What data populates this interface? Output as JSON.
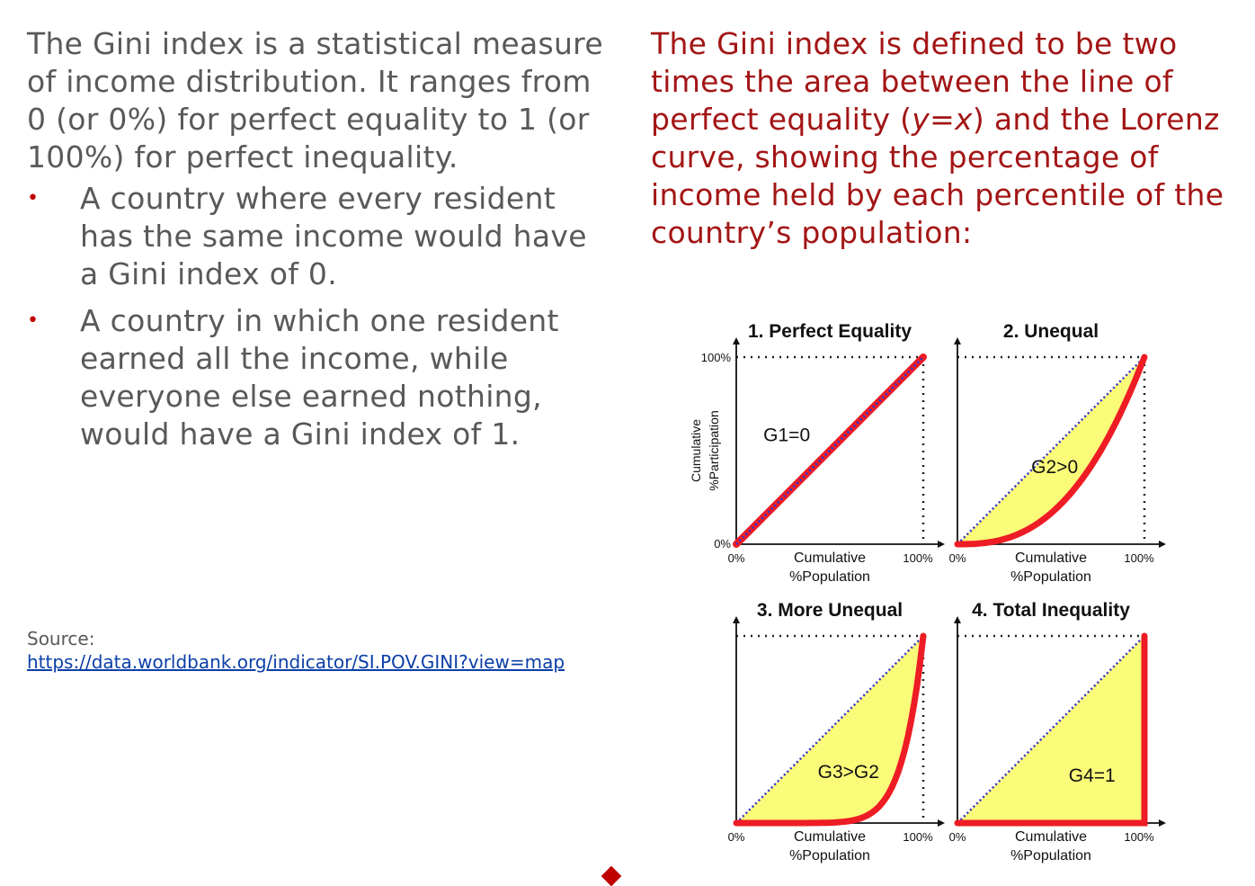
{
  "left": {
    "intro": "The Gini index is a statistical measure of income distribution. It ranges from 0 (or 0%) for perfect equality to 1 (or 100%) for perfect inequality.",
    "bullets": [
      "A country where every resident has the same income would have a Gini index of 0.",
      "A country in which one resident earned all the income, while everyone else earned nothing, would have a Gini index of 1."
    ],
    "bullet_glyph": "•",
    "source_label": "Source:",
    "source_url": "https://data.worldbank.org/indicator/SI.POV.GINI?view=map"
  },
  "right": {
    "text_before": "The Gini index is defined to be two times the area between the line of perfect equality (",
    "var_y": "y",
    "equals": "=",
    "var_x": "x",
    "text_after": ") and the Lorenz curve, showing the percentage of income held by each percentile of the country’s population:"
  },
  "figure": {
    "y_axis_label_line1": "Cumulative",
    "y_axis_label_line2": "%Participation",
    "x_axis_label_line1": "Cumulative",
    "x_axis_label_line2": "%Population",
    "tick_zero": "0%",
    "tick_hundred": "100%",
    "colors": {
      "curve": "#ee1c24",
      "fill": "#fbfb7a",
      "equality": "#3434c8",
      "axis": "#111111"
    },
    "panels": [
      {
        "title": "1. Perfect Equality",
        "label": "G1=0",
        "curve": "equality"
      },
      {
        "title": "2. Unequal",
        "label": "G2>0",
        "curve": "unequal"
      },
      {
        "title": "3. More Unequal",
        "label": "G3>G2",
        "curve": "more-unequal"
      },
      {
        "title": "4. Total Inequality",
        "label": "G4=1",
        "curve": "total"
      }
    ]
  }
}
